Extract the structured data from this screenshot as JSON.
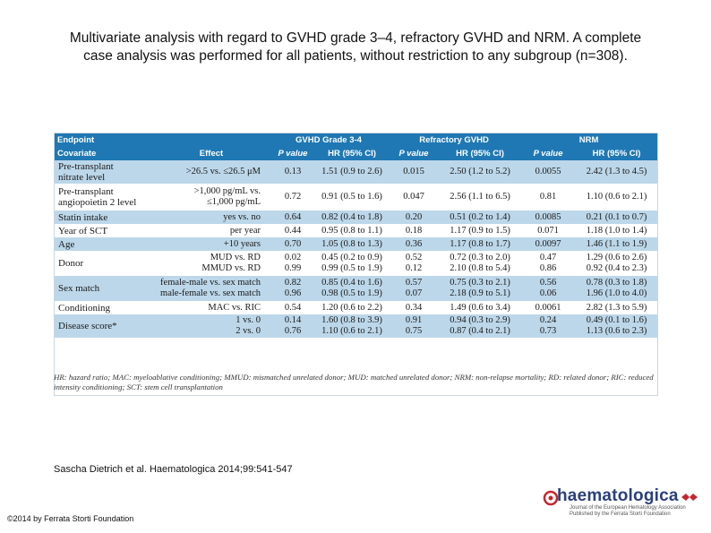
{
  "title": {
    "line1": "Multivariate analysis with regard to GVHD grade 3–4, refractory GVHD and NRM. A complete",
    "line2": "case analysis was performed for all patients, without restriction to any subgroup (n=308)."
  },
  "table": {
    "header_row1": [
      "Endpoint",
      "",
      "GVHD Grade 3-4",
      "",
      "Refractory GVHD",
      "",
      "NRM",
      ""
    ],
    "header_row2": [
      "Covariate",
      "Effect",
      "P value",
      "HR (95% CI)",
      "P value",
      "HR (95% CI)",
      "P value",
      "HR (95% CI)"
    ],
    "rows": [
      {
        "covariate": [
          "Pre-transplant",
          "nitrate level"
        ],
        "effect": [
          ">26.5 vs. ≤26.5 μM"
        ],
        "g_p": [
          "0.13"
        ],
        "g_hr": [
          "1.51 (0.9 to 2.6)"
        ],
        "r_p": [
          "0.015"
        ],
        "r_hr": [
          "2.50 (1.2 to 5.2)"
        ],
        "n_p": [
          "0.0055"
        ],
        "n_hr": [
          "2.42 (1.3 to 4.5)"
        ]
      },
      {
        "covariate": [
          "Pre-transplant",
          "angiopoietin 2 level"
        ],
        "effect": [
          ">1,000 pg/mL vs.",
          "≤1,000 pg/mL"
        ],
        "g_p": [
          "0.72"
        ],
        "g_hr": [
          "0.91 (0.5 to 1.6)"
        ],
        "r_p": [
          "0.047"
        ],
        "r_hr": [
          "2.56 (1.1 to 6.5)"
        ],
        "n_p": [
          "0.81"
        ],
        "n_hr": [
          "1.10 (0.6 to 2.1)"
        ]
      },
      {
        "covariate": [
          "Statin intake"
        ],
        "effect": [
          "yes vs. no"
        ],
        "g_p": [
          "0.64"
        ],
        "g_hr": [
          "0.82 (0.4 to 1.8)"
        ],
        "r_p": [
          "0.20"
        ],
        "r_hr": [
          "0.51 (0.2 to 1.4)"
        ],
        "n_p": [
          "0.0085"
        ],
        "n_hr": [
          "0.21 (0.1 to 0.7)"
        ]
      },
      {
        "covariate": [
          "Year of SCT"
        ],
        "effect": [
          "per year"
        ],
        "g_p": [
          "0.44"
        ],
        "g_hr": [
          "0.95 (0.8 to 1.1)"
        ],
        "r_p": [
          "0.18"
        ],
        "r_hr": [
          "1.17 (0.9 to 1.5)"
        ],
        "n_p": [
          "0.071"
        ],
        "n_hr": [
          "1.18 (1.0 to 1.4)"
        ]
      },
      {
        "covariate": [
          "Age"
        ],
        "effect": [
          "+10 years"
        ],
        "g_p": [
          "0.70"
        ],
        "g_hr": [
          "1.05 (0.8 to 1.3)"
        ],
        "r_p": [
          "0.36"
        ],
        "r_hr": [
          "1.17 (0.8 to 1.7)"
        ],
        "n_p": [
          "0.0097"
        ],
        "n_hr": [
          "1.46 (1.1 to 1.9)"
        ]
      },
      {
        "covariate": [
          "Donor"
        ],
        "effect": [
          "MUD vs. RD",
          "MMUD vs. RD"
        ],
        "g_p": [
          "0.02",
          "0.99"
        ],
        "g_hr": [
          "0.45 (0.2 to 0.9)",
          "0.99 (0.5 to 1.9)"
        ],
        "r_p": [
          "0.52",
          "0.12"
        ],
        "r_hr": [
          "0.72 (0.3 to 2.0)",
          "2.10 (0.8 to 5.4)"
        ],
        "n_p": [
          "0.47",
          "0.86"
        ],
        "n_hr": [
          "1.29 (0.6 to 2.6)",
          "0.92 (0.4 to 2.3)"
        ]
      },
      {
        "covariate": [
          "Sex match"
        ],
        "effect": [
          "female-male vs. sex match",
          "male-female vs. sex match"
        ],
        "g_p": [
          "0.82",
          "0.96"
        ],
        "g_hr": [
          "0.85 (0.4 to 1.6)",
          "0.98 (0.5 to 1.9)"
        ],
        "r_p": [
          "0.57",
          "0.07"
        ],
        "r_hr": [
          "0.75 (0.3 to 2.1)",
          "2.18 (0.9 to 5.1)"
        ],
        "n_p": [
          "0.56",
          "0.06"
        ],
        "n_hr": [
          "0.78 (0.3 to 1.8)",
          "1.96 (1.0 to 4.0)"
        ]
      },
      {
        "covariate": [
          "Conditioning"
        ],
        "effect": [
          "MAC vs. RIC"
        ],
        "g_p": [
          "0.54"
        ],
        "g_hr": [
          "1.20 (0.6 to 2.2)"
        ],
        "r_p": [
          "0.34"
        ],
        "r_hr": [
          "1.49 (0.6 to 3.4)"
        ],
        "n_p": [
          "0.0061"
        ],
        "n_hr": [
          "2.82 (1.3 to 5.9)"
        ]
      },
      {
        "covariate": [
          "Disease score*"
        ],
        "effect": [
          "1 vs. 0",
          "2 vs. 0"
        ],
        "g_p": [
          "0.14",
          "0.76"
        ],
        "g_hr": [
          "1.60 (0.8 to 3.9)",
          "1.10 (0.6 to 2.1)"
        ],
        "r_p": [
          "0.91",
          "0.75"
        ],
        "r_hr": [
          "0.94 (0.3 to 2.9)",
          "0.87 (0.4 to 2.1)"
        ],
        "n_p": [
          "0.24",
          "0.73"
        ],
        "n_hr": [
          "0.49 (0.1 to 1.6)",
          "1.13 (0.6 to 2.3)"
        ]
      }
    ],
    "footnote": "HR: hazard ratio; MAC: myeloablative conditioning; MMUD: mismatched unrelated donor; MUD: matched unrelated donor; NRM: non-relapse mortality; RD: related donor; RIC: reduced intensity conditioning; SCT: stem cell transplantation"
  },
  "citation": "Sascha Dietrich et al. Haematologica 2014;99:541-547",
  "copyright": "©2014 by Ferrata Storti Foundation",
  "logo": {
    "wordmark": "haematologica",
    "tagline_1": "Journal of the European Hematology Association",
    "tagline_2": "Published by the Ferrata Storti Foundation"
  },
  "colors": {
    "header_bg": "#1f78b4",
    "stripe": "#bcd7e9",
    "logo_blue": "#2b3f7d",
    "logo_red": "#c4262e"
  }
}
